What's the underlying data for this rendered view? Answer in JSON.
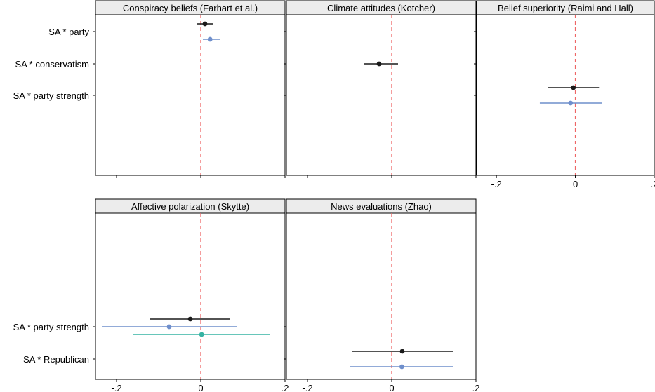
{
  "chart_data": {
    "type": "forest",
    "colors": {
      "series1": "#1a1a1a",
      "series2": "#6f8fcc",
      "series3": "#35b3a3",
      "zero_line": "#ee6666",
      "header_bg": "#ececec"
    },
    "x_ticks": [
      "-.2",
      "0",
      ".2"
    ],
    "x_tick_values": [
      -0.2,
      0,
      0.2
    ],
    "rows": [
      {
        "ylabels": [
          "SA * party",
          "SA * conservatism",
          "SA * party strength"
        ],
        "panels": [
          {
            "title": "Conspiracy beliefs (Farhart et al.)",
            "xlim": [
              -0.25,
              0.2
            ],
            "show_x_labels": false,
            "points": [
              {
                "row": 0,
                "offset": -1,
                "series": 1,
                "est": 0.01,
                "lo": -0.01,
                "hi": 0.03
              },
              {
                "row": 0,
                "offset": 1,
                "series": 2,
                "est": 0.022,
                "lo": 0.005,
                "hi": 0.046
              }
            ]
          },
          {
            "title": "Climate attitudes (Kotcher)",
            "xlim": [
              -0.25,
              0.2
            ],
            "show_x_labels": false,
            "points": [
              {
                "row": 1,
                "offset": 0,
                "series": 1,
                "est": -0.03,
                "lo": -0.065,
                "hi": 0.015
              }
            ]
          },
          {
            "title": "Belief superiority (Raimi and Hall)",
            "xlim": [
              -0.25,
              0.2
            ],
            "show_x_labels": true,
            "points": [
              {
                "row": 2,
                "offset": -1,
                "series": 1,
                "est": -0.005,
                "lo": -0.07,
                "hi": 0.06
              },
              {
                "row": 2,
                "offset": 1,
                "series": 2,
                "est": -0.012,
                "lo": -0.09,
                "hi": 0.068
              }
            ]
          }
        ]
      },
      {
        "ylabels": [
          "SA * party strength",
          "SA * Republican"
        ],
        "panels": [
          {
            "title": "Affective polarization (Skytte)",
            "xlim": [
              -0.25,
              0.2
            ],
            "show_x_labels": true,
            "points": [
              {
                "row": 0,
                "offset": -1,
                "series": 1,
                "est": -0.025,
                "lo": -0.12,
                "hi": 0.07
              },
              {
                "row": 0,
                "offset": 0,
                "series": 2,
                "est": -0.075,
                "lo": -0.235,
                "hi": 0.085
              },
              {
                "row": 0,
                "offset": 1,
                "series": 3,
                "est": 0.002,
                "lo": -0.16,
                "hi": 0.165
              }
            ]
          },
          {
            "title": "News evaluations (Zhao)",
            "xlim": [
              -0.25,
              0.2
            ],
            "show_x_labels": true,
            "points": [
              {
                "row": 1,
                "offset": -1,
                "series": 1,
                "est": 0.025,
                "lo": -0.095,
                "hi": 0.145
              },
              {
                "row": 1,
                "offset": 1,
                "series": 2,
                "est": 0.024,
                "lo": -0.1,
                "hi": 0.145
              }
            ]
          }
        ]
      }
    ]
  }
}
